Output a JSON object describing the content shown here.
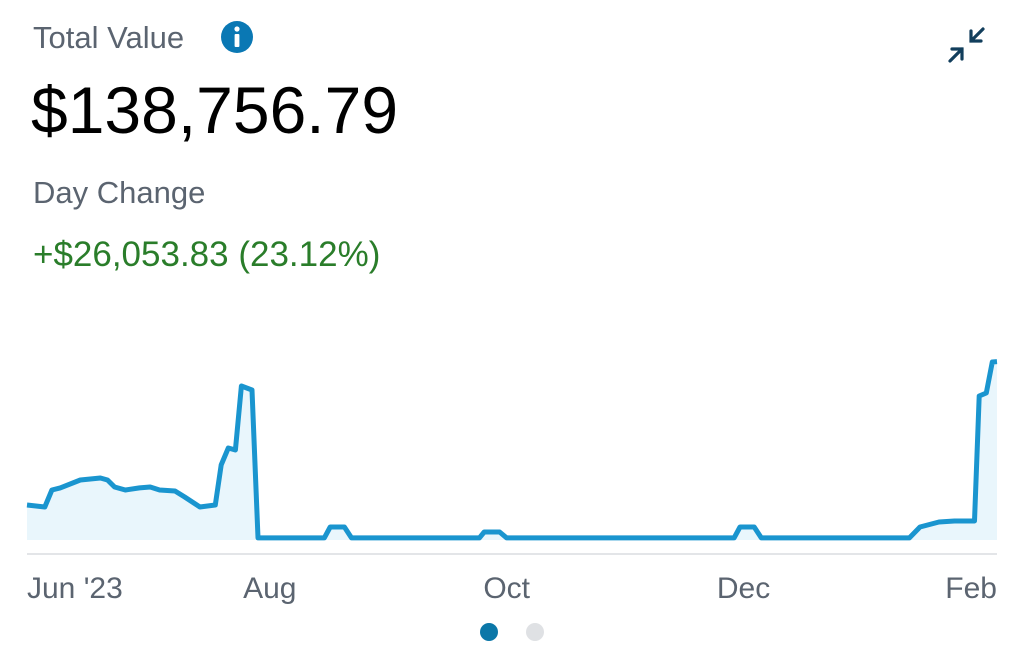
{
  "header": {
    "label": "Total Value",
    "total": "$138,756.79",
    "change_label": "Day Change",
    "change": "+$26,053.83 (23.12%)"
  },
  "chart_data": {
    "type": "area",
    "x": [
      -0.05,
      0.1,
      0.16,
      0.23,
      0.4,
      0.57,
      0.63,
      0.69,
      0.78,
      0.9,
      0.99,
      1.07,
      1.2,
      1.28,
      1.41,
      1.54,
      1.59,
      1.65,
      1.71,
      1.76,
      1.85,
      1.9,
      2.46,
      2.51,
      2.63,
      2.69,
      3.77,
      3.81,
      3.94,
      4.0,
      5.92,
      5.97,
      6.09,
      6.15,
      7.4,
      7.49,
      7.65,
      7.78,
      7.95,
      7.99,
      8.05,
      8.1,
      8.14
    ],
    "values": [
      27200,
      25700,
      38900,
      40500,
      46700,
      48200,
      46700,
      41200,
      38900,
      40500,
      41200,
      38900,
      38100,
      33500,
      25700,
      27200,
      58400,
      71600,
      70000,
      119800,
      116700,
      1600,
      1600,
      10100,
      10100,
      1600,
      1600,
      6200,
      6200,
      1600,
      1600,
      10100,
      10100,
      1600,
      1600,
      10100,
      14000,
      14800,
      14800,
      112000,
      114400,
      138500,
      138800
    ],
    "color": "#1a95cf",
    "area_color": "#e9f6fc",
    "xlim": [
      -0.05,
      8.14
    ],
    "ylim": [
      0,
      155600
    ],
    "xticks": [
      {
        "value": 0,
        "label": "Jun '23"
      },
      {
        "value": 2,
        "label": "Aug"
      },
      {
        "value": 4,
        "label": "Oct"
      },
      {
        "value": 6,
        "label": "Dec"
      },
      {
        "value": 8,
        "label": "Feb"
      }
    ]
  }
}
